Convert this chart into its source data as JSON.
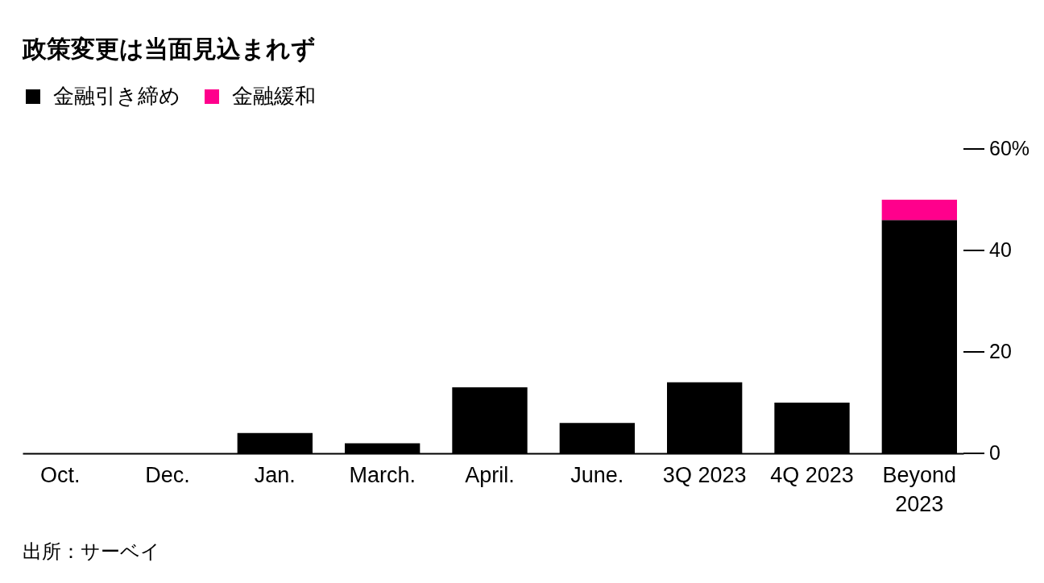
{
  "chart_data": {
    "type": "bar",
    "title": "政策変更は当面見込まれず",
    "categories": [
      "Oct.",
      "Dec.",
      "Jan.",
      "March.",
      "April.",
      "June.",
      "3Q 2023",
      "4Q 2023",
      "Beyond 2023"
    ],
    "stacked": true,
    "series": [
      {
        "name": "金融引き締め",
        "color": "#000000",
        "values": [
          0,
          0,
          4,
          2,
          13,
          6,
          14,
          10,
          46
        ]
      },
      {
        "name": "金融緩和",
        "color": "#ff008c",
        "values": [
          null,
          null,
          null,
          null,
          null,
          null,
          null,
          null,
          4
        ]
      }
    ],
    "ylim": [
      0,
      60
    ],
    "yticks": [
      0,
      20,
      40,
      {
        "value": 60,
        "label": "60%"
      }
    ],
    "legend": "top left",
    "annotations": [
      "出所：サーベイ"
    ]
  }
}
